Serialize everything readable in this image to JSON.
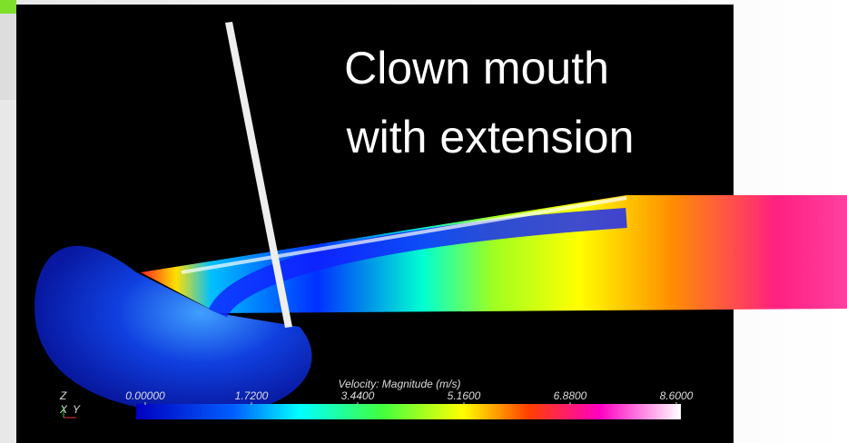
{
  "title": {
    "lines": [
      "Clown mouth",
      "with extension"
    ]
  },
  "colorbar": {
    "title": "Velocity: Magnitude (m/s)",
    "range": [
      0,
      8.6
    ],
    "ticks": [
      {
        "value": 0,
        "label": "0.00000"
      },
      {
        "value": 1.72,
        "label": "1.7200"
      },
      {
        "value": 3.44,
        "label": "3.4400"
      },
      {
        "value": 5.16,
        "label": "5.1600"
      },
      {
        "value": 6.88,
        "label": "6.8800"
      },
      {
        "value": 8.6,
        "label": "8.6000"
      }
    ]
  },
  "axes_triad": {
    "z": "Z",
    "x": "X",
    "y": "Y"
  }
}
